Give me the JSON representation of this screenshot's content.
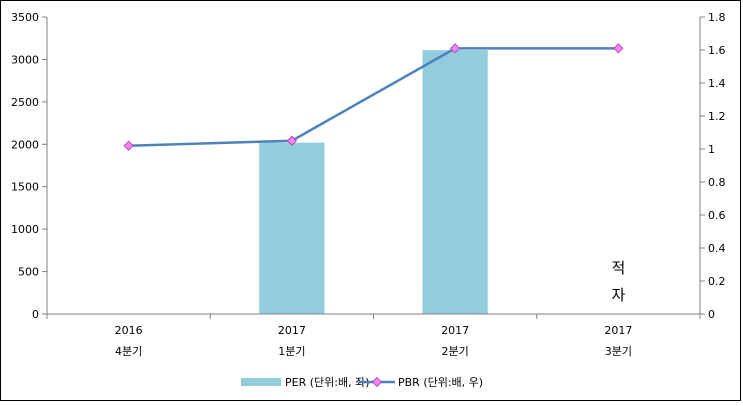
{
  "chart_data": {
    "type": "bar",
    "categories": [
      [
        "2016",
        "4분기"
      ],
      [
        "2017",
        "1분기"
      ],
      [
        "2017",
        "2분기"
      ],
      [
        "2017",
        "3분기"
      ]
    ],
    "series": [
      {
        "name": "PER (단위:배, 좌)",
        "type": "bar",
        "axis": "left",
        "color": "#92cddc",
        "values": [
          null,
          2020,
          3110,
          null
        ]
      },
      {
        "name": "PBR (단위:배, 우)",
        "type": "line",
        "axis": "right",
        "color": "#4f81bd",
        "marker_color": "#ff80ff",
        "values": [
          1.02,
          1.05,
          1.61,
          1.61
        ]
      }
    ],
    "y_left": {
      "min": 0,
      "max": 3500,
      "step": 500,
      "ticks": [
        "0",
        "500",
        "1000",
        "1500",
        "2000",
        "2500",
        "3000",
        "3500"
      ]
    },
    "y_right": {
      "min": 0,
      "max": 1.8,
      "step": 0.2,
      "ticks": [
        "0",
        "0.2",
        "0.4",
        "0.6",
        "0.8",
        "1",
        "1.2",
        "1.4",
        "1.6",
        "1.8"
      ]
    },
    "annotation": {
      "category_index": 3,
      "lines": [
        "적",
        "자"
      ]
    },
    "legend": {
      "position": "bottom"
    },
    "grid": false
  }
}
